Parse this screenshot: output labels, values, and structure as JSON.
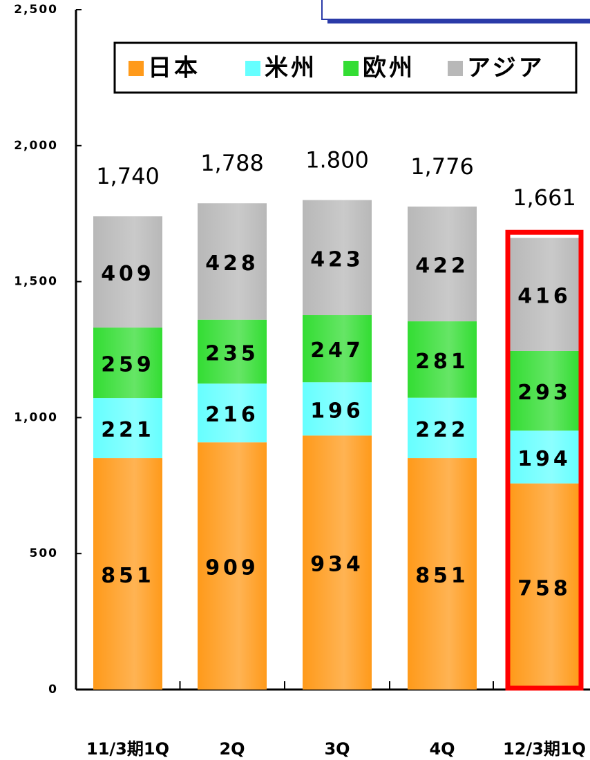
{
  "chart_data": {
    "type": "stacked-bar",
    "categories": [
      "11/3期1Q",
      "2Q",
      "3Q",
      "4Q",
      "12/3期1Q"
    ],
    "series": [
      {
        "name": "日本",
        "color": "#ff9a1a",
        "values": [
          851,
          909,
          934,
          851,
          758
        ]
      },
      {
        "name": "米州",
        "color": "#66ffff",
        "values": [
          221,
          216,
          196,
          222,
          194
        ]
      },
      {
        "name": "欧州",
        "color": "#33dd33",
        "values": [
          259,
          235,
          247,
          281,
          293
        ]
      },
      {
        "name": "アジア",
        "color": "#b8b8b8",
        "values": [
          409,
          428,
          423,
          422,
          416
        ]
      }
    ],
    "totals": {
      "values": [
        1740,
        1788,
        1800,
        1776,
        1661
      ],
      "value_labels": [
        "1,740",
        "1,788",
        "1.800",
        "1,776",
        "1,661"
      ]
    },
    "ylim": [
      0,
      2500
    ],
    "yticks": [
      0,
      500,
      {
        "value": 1000,
        "label": "1,000"
      },
      {
        "value": 1500,
        "label": "1,500"
      },
      {
        "value": 2000,
        "label": "2,000"
      },
      {
        "value": 2500,
        "label": "2,500"
      }
    ],
    "highlight": 4,
    "highlight_color": "#ff0000",
    "legend": "top"
  }
}
